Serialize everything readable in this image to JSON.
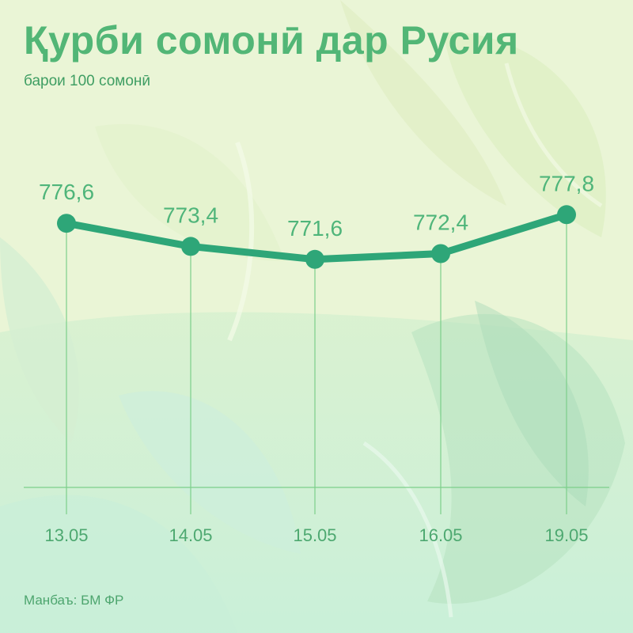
{
  "title": "Қурби сомонӣ дар Русия",
  "subtitle": "барои 100 сомонӣ",
  "source": "Манбаъ: БМ ФР",
  "colors": {
    "line": "#2ea678",
    "marker": "#2ea678",
    "value_label": "#4fb57a",
    "date_label": "#4da870",
    "gridline": "#7ccf8a",
    "title": "#52b676"
  },
  "chart_data": {
    "type": "line",
    "title": "Қурби сомонӣ дар Русия",
    "subtitle": "барои 100 сомонӣ",
    "xlabel": "",
    "ylabel": "",
    "categories": [
      "13.05",
      "14.05",
      "15.05",
      "16.05",
      "19.05"
    ],
    "value_labels": [
      "776,6",
      "773,4",
      "771,6",
      "772,4",
      "777,8"
    ],
    "series": [
      {
        "values": [
          776.6,
          773.4,
          771.6,
          772.4,
          777.8
        ]
      }
    ],
    "ylim": [
      740,
      790
    ],
    "grid": "vertical",
    "legend": "none"
  }
}
